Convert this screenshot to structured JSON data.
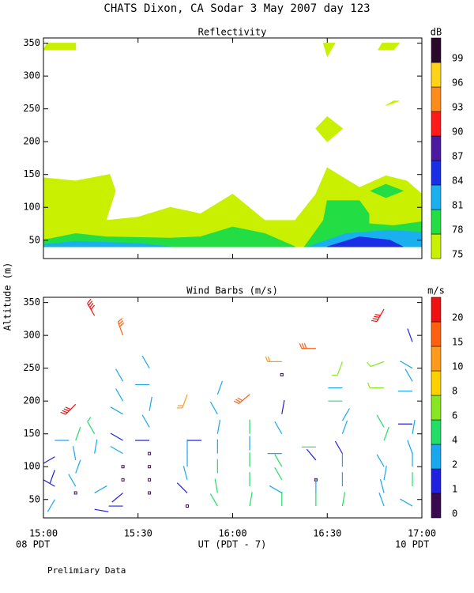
{
  "chart_data": {
    "type": "sodar",
    "title": "CHATS Dixon, CA  Sodar    3 May 2007  day 123",
    "y_label": "Altitude (m)",
    "x_label": "UT  (PDT - 7)",
    "x_left_note": "08 PDT",
    "x_right_note": "10 PDT",
    "footnote": "Prelimiary Data",
    "xlim": [
      15,
      17
    ],
    "xticks": [
      {
        "value": 15,
        "label": "15:00"
      },
      {
        "value": 15.5,
        "label": "15:30"
      },
      {
        "value": 16,
        "label": "16:00"
      },
      {
        "value": 16.5,
        "label": "16:30"
      },
      {
        "value": 17,
        "label": "17:00"
      }
    ],
    "ylim": [
      22,
      358
    ],
    "yticks": [
      50,
      100,
      150,
      200,
      250,
      300,
      350
    ],
    "reflectivity": {
      "title": "Reflectivity",
      "unit": "dB",
      "levels": [
        75,
        78,
        81,
        84,
        87,
        90,
        93,
        96,
        99
      ],
      "colors": [
        "#c8f000",
        "#22dd44",
        "#1ab0f0",
        "#1a2ee6",
        "#4b1aa0",
        "#ff1a1a",
        "#ff8c1a",
        "#ffd21a",
        "#2a0a2a"
      ],
      "regions": [
        {
          "level": 75,
          "x": [
            15,
            15,
            15.17,
            15.35,
            15.38,
            15.33,
            15.5,
            15.67,
            15.83,
            16,
            16.17,
            16.33,
            16.44,
            16.5,
            16.67,
            16.81,
            16.92,
            17,
            17
          ],
          "y": [
            40,
            145,
            140,
            150,
            125,
            80,
            85,
            100,
            90,
            120,
            80,
            80,
            120,
            160,
            130,
            148,
            140,
            120,
            40
          ]
        },
        {
          "level": 78,
          "x": [
            15,
            15,
            15.17,
            15.33,
            15.67,
            15.83,
            16,
            16.17,
            16.33
          ],
          "y": [
            40,
            50,
            60,
            55,
            53,
            55,
            70,
            60,
            40
          ]
        },
        {
          "level": 78,
          "x": [
            16.38,
            16.48,
            16.5,
            16.67,
            16.72,
            16.72,
            16.85,
            17,
            17
          ],
          "y": [
            40,
            80,
            110,
            110,
            90,
            75,
            72,
            78,
            40
          ]
        },
        {
          "level": 78,
          "x": [
            16.73,
            16.81,
            16.9,
            16.81
          ],
          "y": [
            125,
            135,
            125,
            115
          ]
        },
        {
          "level": 81,
          "x": [
            15,
            15,
            15.17,
            15.5,
            15.67
          ],
          "y": [
            40,
            43,
            48,
            45,
            40
          ]
        },
        {
          "level": 81,
          "x": [
            16.4,
            16.6,
            16.83,
            17,
            17
          ],
          "y": [
            40,
            60,
            65,
            62,
            40
          ]
        },
        {
          "level": 84,
          "x": [
            16.5,
            16.67,
            16.83,
            16.9
          ],
          "y": [
            40,
            55,
            50,
            40
          ]
        },
        {
          "level": 75,
          "x": [
            15,
            15.02,
            15.17,
            15.17
          ],
          "y": [
            340,
            350,
            350,
            340
          ]
        },
        {
          "level": 75,
          "x": [
            16.5,
            16.48,
            16.54
          ],
          "y": [
            330,
            350,
            350
          ]
        },
        {
          "level": 75,
          "x": [
            16.44,
            16.5,
            16.58,
            16.5
          ],
          "y": [
            220,
            200,
            220,
            238
          ]
        },
        {
          "level": 75,
          "x": [
            16.81,
            16.85,
            16.88
          ],
          "y": [
            255,
            262,
            262
          ]
        },
        {
          "level": 75,
          "x": [
            16.77,
            16.79,
            16.88,
            16.85
          ],
          "y": [
            340,
            350,
            350,
            340
          ]
        }
      ]
    },
    "wind": {
      "title": "Wind Barbs (m/s)",
      "unit": "m/s",
      "levels": [
        0,
        1,
        2,
        4,
        6,
        8,
        10,
        15,
        20
      ],
      "colors": [
        "#3a0a50",
        "#2020e0",
        "#19a8f0",
        "#22dd66",
        "#88e622",
        "#ffd000",
        "#ff9a1a",
        "#ff6010",
        "#ee1111"
      ],
      "barbs": [
        {
          "x": 15.06,
          "y": 140,
          "speed": 3,
          "direction": 90
        },
        {
          "x": 15.06,
          "y": 115,
          "speed": 1.5,
          "direction": 240
        },
        {
          "x": 15.06,
          "y": 95,
          "speed": 1.5,
          "direction": 200
        },
        {
          "x": 15.06,
          "y": 70,
          "speed": 1,
          "direction": 300
        },
        {
          "x": 15.06,
          "y": 50,
          "speed": 3,
          "direction": 210
        },
        {
          "x": 15.17,
          "y": 195,
          "speed": 22,
          "direction": 225
        },
        {
          "x": 15.17,
          "y": 140,
          "speed": 4.5,
          "direction": 20
        },
        {
          "x": 15.17,
          "y": 110,
          "speed": 3,
          "direction": 350
        },
        {
          "x": 15.17,
          "y": 90,
          "speed": 3,
          "direction": 20
        },
        {
          "x": 15.17,
          "y": 70,
          "speed": 3,
          "direction": 330
        },
        {
          "x": 15.17,
          "y": 60,
          "speed": 0.3,
          "direction": 0
        },
        {
          "x": 15.27,
          "y": 330,
          "speed": 22,
          "direction": 330
        },
        {
          "x": 15.27,
          "y": 150,
          "speed": 5,
          "direction": 330
        },
        {
          "x": 15.27,
          "y": 120,
          "speed": 2,
          "direction": 10
        },
        {
          "x": 15.27,
          "y": 60,
          "speed": 3,
          "direction": 60
        },
        {
          "x": 15.27,
          "y": 35,
          "speed": 1,
          "direction": 100
        },
        {
          "x": 15.42,
          "y": 300,
          "speed": 17,
          "direction": 340
        },
        {
          "x": 15.42,
          "y": 230,
          "speed": 3,
          "direction": 330
        },
        {
          "x": 15.42,
          "y": 200,
          "speed": 3,
          "direction": 330
        },
        {
          "x": 15.42,
          "y": 180,
          "speed": 3,
          "direction": 300
        },
        {
          "x": 15.42,
          "y": 140,
          "speed": 1.5,
          "direction": 300
        },
        {
          "x": 15.42,
          "y": 120,
          "speed": 3,
          "direction": 300
        },
        {
          "x": 15.42,
          "y": 100,
          "speed": 0.3,
          "direction": 0
        },
        {
          "x": 15.42,
          "y": 80,
          "speed": 0.3,
          "direction": 0
        },
        {
          "x": 15.42,
          "y": 60,
          "speed": 1,
          "direction": 230
        },
        {
          "x": 15.42,
          "y": 40,
          "speed": 1,
          "direction": 270
        },
        {
          "x": 15.56,
          "y": 250,
          "speed": 3,
          "direction": 330
        },
        {
          "x": 15.56,
          "y": 225,
          "speed": 3,
          "direction": 270
        },
        {
          "x": 15.56,
          "y": 185,
          "speed": 3,
          "direction": 10
        },
        {
          "x": 15.56,
          "y": 160,
          "speed": 3,
          "direction": 330
        },
        {
          "x": 15.56,
          "y": 140,
          "speed": 1.5,
          "direction": 270
        },
        {
          "x": 15.56,
          "y": 120,
          "speed": 0.3,
          "direction": 0
        },
        {
          "x": 15.56,
          "y": 100,
          "speed": 0.3,
          "direction": 0
        },
        {
          "x": 15.56,
          "y": 80,
          "speed": 0.3,
          "direction": 0
        },
        {
          "x": 15.56,
          "y": 60,
          "speed": 0.3,
          "direction": 0
        },
        {
          "x": 15.76,
          "y": 210,
          "speed": 12,
          "direction": 200
        },
        {
          "x": 15.76,
          "y": 140,
          "speed": 1.5,
          "direction": 90
        },
        {
          "x": 15.76,
          "y": 120,
          "speed": 3,
          "direction": 0
        },
        {
          "x": 15.76,
          "y": 100,
          "speed": 3,
          "direction": 0
        },
        {
          "x": 15.76,
          "y": 80,
          "speed": 3,
          "direction": 345
        },
        {
          "x": 15.76,
          "y": 60,
          "speed": 1,
          "direction": 315
        },
        {
          "x": 15.76,
          "y": 40,
          "speed": 0.3,
          "direction": 0
        },
        {
          "x": 15.92,
          "y": 210,
          "speed": 3,
          "direction": 20
        },
        {
          "x": 15.92,
          "y": 180,
          "speed": 3,
          "direction": 330
        },
        {
          "x": 15.92,
          "y": 150,
          "speed": 3,
          "direction": 10
        },
        {
          "x": 15.92,
          "y": 120,
          "speed": 3,
          "direction": 0
        },
        {
          "x": 15.92,
          "y": 90,
          "speed": 4.5,
          "direction": 0
        },
        {
          "x": 15.92,
          "y": 60,
          "speed": 4.5,
          "direction": 350
        },
        {
          "x": 15.92,
          "y": 40,
          "speed": 4.5,
          "direction": 330
        },
        {
          "x": 16.09,
          "y": 210,
          "speed": 17,
          "direction": 230
        },
        {
          "x": 16.09,
          "y": 150,
          "speed": 4.5,
          "direction": 0
        },
        {
          "x": 16.09,
          "y": 125,
          "speed": 3,
          "direction": 0
        },
        {
          "x": 16.09,
          "y": 100,
          "speed": 4.5,
          "direction": 0
        },
        {
          "x": 16.09,
          "y": 70,
          "speed": 4.5,
          "direction": 0
        },
        {
          "x": 16.09,
          "y": 40,
          "speed": 4.5,
          "direction": 10
        },
        {
          "x": 16.26,
          "y": 260,
          "speed": 12,
          "direction": 270
        },
        {
          "x": 16.26,
          "y": 240,
          "speed": 0.3,
          "direction": 0
        },
        {
          "x": 16.26,
          "y": 180,
          "speed": 1.5,
          "direction": 10
        },
        {
          "x": 16.26,
          "y": 150,
          "speed": 3,
          "direction": 330
        },
        {
          "x": 16.26,
          "y": 120,
          "speed": 3,
          "direction": 270
        },
        {
          "x": 16.26,
          "y": 100,
          "speed": 4.5,
          "direction": 330
        },
        {
          "x": 16.26,
          "y": 80,
          "speed": 4.5,
          "direction": 330
        },
        {
          "x": 16.26,
          "y": 60,
          "speed": 3,
          "direction": 300
        },
        {
          "x": 16.26,
          "y": 40,
          "speed": 4.5,
          "direction": 0
        },
        {
          "x": 16.44,
          "y": 280,
          "speed": 17,
          "direction": 270
        },
        {
          "x": 16.44,
          "y": 130,
          "speed": 4.5,
          "direction": 270
        },
        {
          "x": 16.44,
          "y": 110,
          "speed": 1.5,
          "direction": 320
        },
        {
          "x": 16.44,
          "y": 80,
          "speed": 0.3,
          "direction": 0
        },
        {
          "x": 16.44,
          "y": 60,
          "speed": 3,
          "direction": 0
        },
        {
          "x": 16.44,
          "y": 40,
          "speed": 4.5,
          "direction": 0
        },
        {
          "x": 16.58,
          "y": 260,
          "speed": 7,
          "direction": 200
        },
        {
          "x": 16.58,
          "y": 220,
          "speed": 3,
          "direction": 270
        },
        {
          "x": 16.58,
          "y": 200,
          "speed": 4.5,
          "direction": 270
        },
        {
          "x": 16.58,
          "y": 170,
          "speed": 3,
          "direction": 30
        },
        {
          "x": 16.58,
          "y": 150,
          "speed": 3,
          "direction": 20
        },
        {
          "x": 16.58,
          "y": 120,
          "speed": 1.5,
          "direction": 330
        },
        {
          "x": 16.58,
          "y": 100,
          "speed": 3,
          "direction": 0
        },
        {
          "x": 16.58,
          "y": 70,
          "speed": 3,
          "direction": 0
        },
        {
          "x": 16.58,
          "y": 40,
          "speed": 4.5,
          "direction": 10
        },
        {
          "x": 16.8,
          "y": 340,
          "speed": 22,
          "direction": 210
        },
        {
          "x": 16.8,
          "y": 260,
          "speed": 7,
          "direction": 250
        },
        {
          "x": 16.8,
          "y": 220,
          "speed": 7,
          "direction": 270
        },
        {
          "x": 16.8,
          "y": 160,
          "speed": 4.5,
          "direction": 330
        },
        {
          "x": 16.8,
          "y": 140,
          "speed": 4.5,
          "direction": 20
        },
        {
          "x": 16.8,
          "y": 100,
          "speed": 3,
          "direction": 330
        },
        {
          "x": 16.8,
          "y": 80,
          "speed": 3,
          "direction": 10
        },
        {
          "x": 16.8,
          "y": 60,
          "speed": 3,
          "direction": 345
        },
        {
          "x": 16.8,
          "y": 40,
          "speed": 3,
          "direction": 340
        },
        {
          "x": 16.95,
          "y": 290,
          "speed": 1.5,
          "direction": 340
        },
        {
          "x": 16.95,
          "y": 250,
          "speed": 3,
          "direction": 300
        },
        {
          "x": 16.95,
          "y": 230,
          "speed": 3,
          "direction": 330
        },
        {
          "x": 16.95,
          "y": 215,
          "speed": 3,
          "direction": 270
        },
        {
          "x": 16.95,
          "y": 165,
          "speed": 1.5,
          "direction": 270
        },
        {
          "x": 16.95,
          "y": 150,
          "speed": 3,
          "direction": 10
        },
        {
          "x": 16.95,
          "y": 120,
          "speed": 3,
          "direction": 340
        },
        {
          "x": 16.95,
          "y": 100,
          "speed": 3,
          "direction": 0
        },
        {
          "x": 16.95,
          "y": 70,
          "speed": 4.5,
          "direction": 0
        },
        {
          "x": 16.95,
          "y": 40,
          "speed": 3,
          "direction": 300
        }
      ]
    }
  }
}
